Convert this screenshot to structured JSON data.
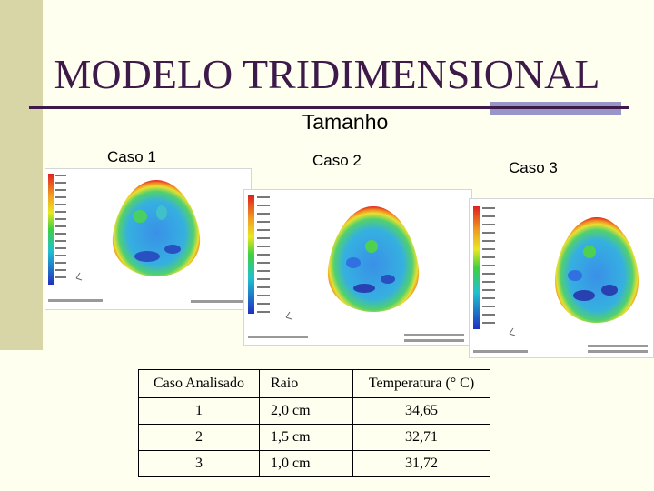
{
  "slide": {
    "title": "MODELO TRIDIMENSIONAL",
    "subtitle": "Tamanho",
    "colors": {
      "title": "#3d1a4a",
      "accent_box": "#9896c8",
      "left_bar": "#d8d6a6"
    }
  },
  "cases": [
    {
      "label": "Caso 1"
    },
    {
      "label": "Caso 2"
    },
    {
      "label": "Caso 3"
    }
  ],
  "table": {
    "headers": [
      "Caso Analisado",
      "Raio",
      "Temperatura (° C)"
    ],
    "rows": [
      [
        "1",
        "2,0 cm",
        "34,65"
      ],
      [
        "2",
        "1,5 cm",
        "32,71"
      ],
      [
        "3",
        "1,0 cm",
        "31,72"
      ]
    ]
  }
}
